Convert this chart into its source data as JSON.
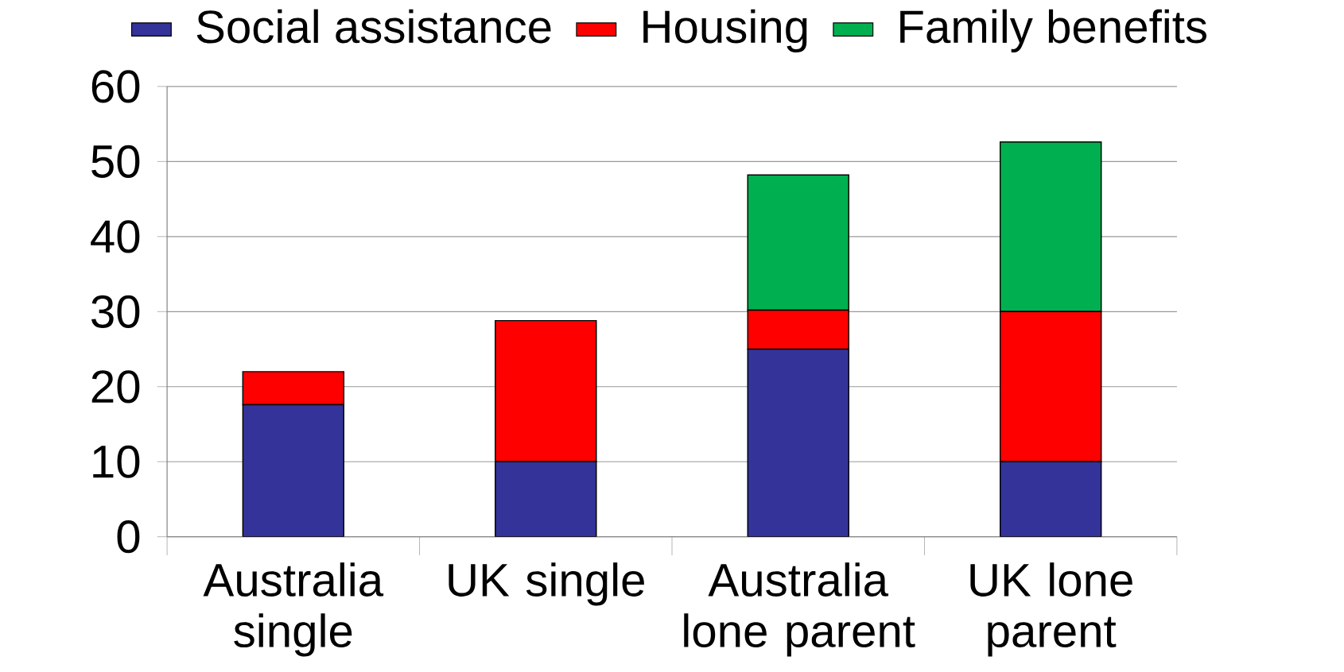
{
  "chart_data": {
    "type": "bar",
    "stacked": true,
    "categories": [
      "Australia single",
      "UK single",
      "Australia lone parent",
      "UK lone parent"
    ],
    "series": [
      {
        "name": "Social assistance",
        "color": "#333399",
        "values": [
          17.6,
          10,
          25,
          10
        ]
      },
      {
        "name": "Housing",
        "color": "#ff0000",
        "values": [
          4.4,
          18.8,
          5.2,
          20
        ]
      },
      {
        "name": "Family benefits",
        "color": "#00b050",
        "values": [
          null,
          null,
          18,
          22.6
        ]
      }
    ],
    "ylim": [
      0,
      60
    ],
    "yticks": [
      0,
      10,
      20,
      30,
      40,
      50,
      60
    ],
    "grid": "y",
    "legend": "top"
  }
}
